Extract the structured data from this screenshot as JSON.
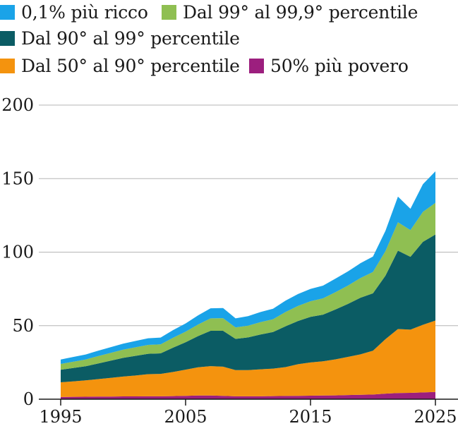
{
  "legend": [
    {
      "label": "0,1% più ricco",
      "color": "#1aa3e8"
    },
    {
      "label": "Dal 99° al 99,9° percentile",
      "color": "#8fbf52"
    },
    {
      "label": "Dal 90° al 99° percentile",
      "color": "#0b5c64"
    },
    {
      "label": "Dal 50° al 90° percentile",
      "color": "#f4930e"
    },
    {
      "label": "50% più povero",
      "color": "#9c1f7e"
    }
  ],
  "chart_data": {
    "type": "area",
    "stacked": true,
    "title": "",
    "xlabel": "",
    "ylabel": "",
    "xlim": [
      1995,
      2025
    ],
    "ylim": [
      0,
      200
    ],
    "y_ticks": [
      0,
      50,
      100,
      150,
      200
    ],
    "x_ticks": [
      1995,
      2005,
      2015,
      2025
    ],
    "grid": "horizontal",
    "legend_position": "top",
    "x": [
      1995,
      1996,
      1997,
      1998,
      1999,
      2000,
      2001,
      2002,
      2003,
      2004,
      2005,
      2006,
      2007,
      2008,
      2009,
      2010,
      2011,
      2012,
      2013,
      2014,
      2015,
      2016,
      2017,
      2018,
      2019,
      2020,
      2021,
      2022,
      2023,
      2024,
      2025
    ],
    "series": [
      {
        "name": "50% più povero",
        "color": "#9c1f7e",
        "values": [
          1.5,
          1.6,
          1.7,
          1.8,
          1.8,
          1.9,
          1.9,
          2.0,
          2.0,
          2.1,
          2.3,
          2.5,
          2.5,
          2.3,
          2.0,
          2.0,
          2.0,
          2.1,
          2.2,
          2.3,
          2.4,
          2.5,
          2.6,
          2.8,
          3.0,
          3.2,
          3.8,
          4.2,
          4.3,
          4.6,
          4.9
        ]
      },
      {
        "name": "Dal 50° al 90° percentile",
        "color": "#f4930e",
        "values": [
          10,
          10.5,
          11.1,
          11.9,
          12.7,
          13.5,
          14.2,
          15,
          15.2,
          16.4,
          17.8,
          19.2,
          20,
          19.8,
          17.8,
          17.8,
          18.3,
          18.7,
          19.6,
          21.5,
          22.6,
          23.3,
          24.5,
          26,
          27.5,
          29.8,
          37,
          43.5,
          43,
          46,
          48.6
        ]
      },
      {
        "name": "Dal 90° al 99° percentile",
        "color": "#0b5c64",
        "values": [
          8.5,
          9.1,
          9.6,
          10.6,
          11.7,
          12.7,
          13.4,
          13.9,
          14,
          16.6,
          18.6,
          21.2,
          24,
          24.4,
          21.2,
          22.2,
          23.7,
          24.9,
          27.8,
          29.4,
          31,
          31.7,
          33.9,
          36,
          38.5,
          39,
          43.2,
          53.3,
          49.5,
          56.4,
          58.5
        ]
      },
      {
        "name": "Dal 99° al 99,9° percentile",
        "color": "#8fbf52",
        "values": [
          4,
          4.3,
          4.6,
          5.0,
          5.3,
          5.6,
          5.8,
          6.0,
          6.1,
          6.7,
          7.2,
          7.9,
          8.5,
          8.6,
          7.8,
          8.0,
          8.4,
          8.7,
          9.7,
          10.2,
          10.6,
          11.1,
          11.8,
          12.5,
          13.4,
          14.5,
          16.7,
          19.3,
          18.2,
          20.4,
          21.5
        ]
      },
      {
        "name": "0,1% più ricco",
        "color": "#1aa3e8",
        "values": [
          3,
          3.2,
          3.4,
          3.7,
          3.9,
          4.1,
          4.3,
          4.5,
          4.6,
          5.2,
          5.6,
          6.2,
          6.8,
          6.9,
          6.2,
          6.5,
          6.9,
          7.1,
          7.7,
          8.1,
          8.4,
          8.6,
          9.2,
          9.6,
          10.1,
          10.5,
          13.8,
          17.5,
          14.5,
          18.8,
          21.5
        ]
      }
    ]
  }
}
